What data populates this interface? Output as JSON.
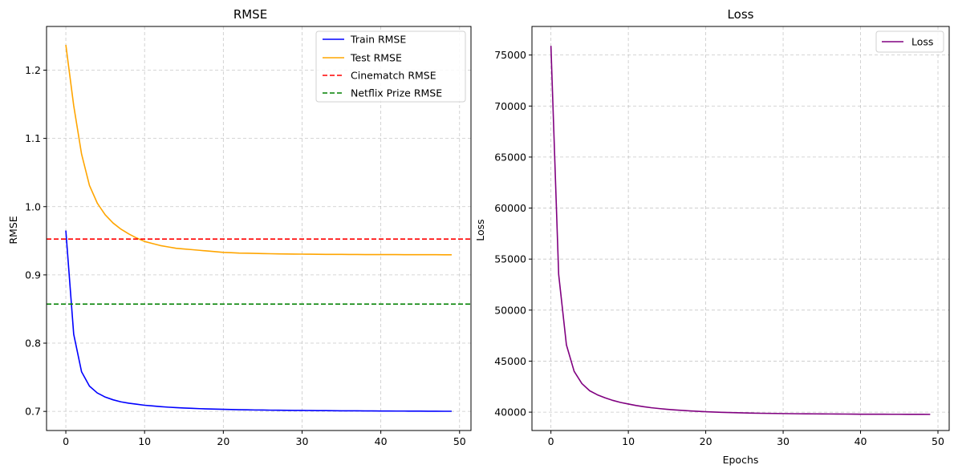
{
  "chart_data": [
    {
      "type": "line",
      "title": "RMSE",
      "xlabel": "",
      "ylabel": "RMSE",
      "xlim": [
        -2.45,
        51.45
      ],
      "ylim": [
        0.672,
        1.264
      ],
      "xticks": [
        0,
        10,
        20,
        30,
        40,
        50
      ],
      "yticks": [
        0.7,
        0.8,
        0.9,
        1.0,
        1.1,
        1.2
      ],
      "ytick_decimals": 1,
      "grid": true,
      "legend_position": "upper right",
      "series": [
        {
          "name": "Train RMSE",
          "color": "#0000ff",
          "style": "solid",
          "x": [
            0,
            1,
            2,
            3,
            4,
            5,
            6,
            7,
            8,
            9,
            10,
            11,
            12,
            13,
            14,
            15,
            16,
            17,
            18,
            19,
            20,
            21,
            22,
            23,
            24,
            25,
            26,
            27,
            28,
            29,
            30,
            31,
            32,
            33,
            34,
            35,
            36,
            37,
            38,
            39,
            40,
            41,
            42,
            43,
            44,
            45,
            46,
            47,
            48,
            49
          ],
          "y": [
            0.965,
            0.813,
            0.758,
            0.737,
            0.727,
            0.721,
            0.717,
            0.714,
            0.712,
            0.7105,
            0.709,
            0.708,
            0.707,
            0.7062,
            0.7055,
            0.705,
            0.7045,
            0.704,
            0.7036,
            0.7033,
            0.703,
            0.7027,
            0.7025,
            0.7023,
            0.7021,
            0.702,
            0.7018,
            0.7017,
            0.7016,
            0.7015,
            0.7014,
            0.7013,
            0.7012,
            0.7011,
            0.701,
            0.7009,
            0.7008,
            0.7008,
            0.7007,
            0.7007,
            0.7006,
            0.7006,
            0.7005,
            0.7005,
            0.7004,
            0.7004,
            0.7003,
            0.7003,
            0.7002,
            0.7002
          ]
        },
        {
          "name": "Test RMSE",
          "color": "#ffa500",
          "style": "solid",
          "x": [
            0,
            1,
            2,
            3,
            4,
            5,
            6,
            7,
            8,
            9,
            10,
            11,
            12,
            13,
            14,
            15,
            16,
            17,
            18,
            19,
            20,
            21,
            22,
            23,
            24,
            25,
            26,
            27,
            28,
            29,
            30,
            31,
            32,
            33,
            34,
            35,
            36,
            37,
            38,
            39,
            40,
            41,
            42,
            43,
            44,
            45,
            46,
            47,
            48,
            49
          ],
          "y": [
            1.237,
            1.148,
            1.077,
            1.031,
            1.005,
            0.988,
            0.976,
            0.967,
            0.96,
            0.954,
            0.949,
            0.946,
            0.943,
            0.941,
            0.939,
            0.938,
            0.937,
            0.936,
            0.935,
            0.934,
            0.933,
            0.9325,
            0.932,
            0.9318,
            0.9315,
            0.9312,
            0.931,
            0.9308,
            0.9306,
            0.9305,
            0.9304,
            0.9303,
            0.9302,
            0.9301,
            0.93,
            0.93,
            0.9299,
            0.9299,
            0.9298,
            0.9298,
            0.9297,
            0.9297,
            0.9297,
            0.9296,
            0.9296,
            0.9296,
            0.9296,
            0.9296,
            0.9295,
            0.9295
          ]
        },
        {
          "name": "Cinematch RMSE",
          "color": "#ff0000",
          "style": "dashed",
          "hline": 0.9525
        },
        {
          "name": "Netflix Prize RMSE",
          "color": "#008000",
          "style": "dashed",
          "hline": 0.8572
        }
      ]
    },
    {
      "type": "line",
      "title": "Loss",
      "xlabel": "Epochs",
      "ylabel": "Loss",
      "xlim": [
        -2.45,
        51.45
      ],
      "ylim": [
        38200,
        77800
      ],
      "xticks": [
        0,
        10,
        20,
        30,
        40,
        50
      ],
      "yticks": [
        40000,
        45000,
        50000,
        55000,
        60000,
        65000,
        70000,
        75000
      ],
      "ytick_decimals": 0,
      "grid": true,
      "legend_position": "upper right",
      "series": [
        {
          "name": "Loss",
          "color": "#800080",
          "style": "solid",
          "x": [
            0,
            1,
            2,
            3,
            4,
            5,
            6,
            7,
            8,
            9,
            10,
            11,
            12,
            13,
            14,
            15,
            16,
            17,
            18,
            19,
            20,
            21,
            22,
            23,
            24,
            25,
            26,
            27,
            28,
            29,
            30,
            31,
            32,
            33,
            34,
            35,
            36,
            37,
            38,
            39,
            40,
            41,
            42,
            43,
            44,
            45,
            46,
            47,
            48,
            49
          ],
          "y": [
            75900,
            53500,
            46600,
            44000,
            42800,
            42100,
            41700,
            41400,
            41150,
            40950,
            40800,
            40650,
            40530,
            40430,
            40350,
            40280,
            40220,
            40170,
            40120,
            40080,
            40040,
            40010,
            39980,
            39960,
            39940,
            39920,
            39900,
            39890,
            39880,
            39870,
            39860,
            39850,
            39840,
            39835,
            39830,
            39825,
            39820,
            39815,
            39810,
            39805,
            39800,
            39798,
            39796,
            39794,
            39792,
            39790,
            39788,
            39786,
            39784,
            39782
          ]
        }
      ]
    }
  ]
}
